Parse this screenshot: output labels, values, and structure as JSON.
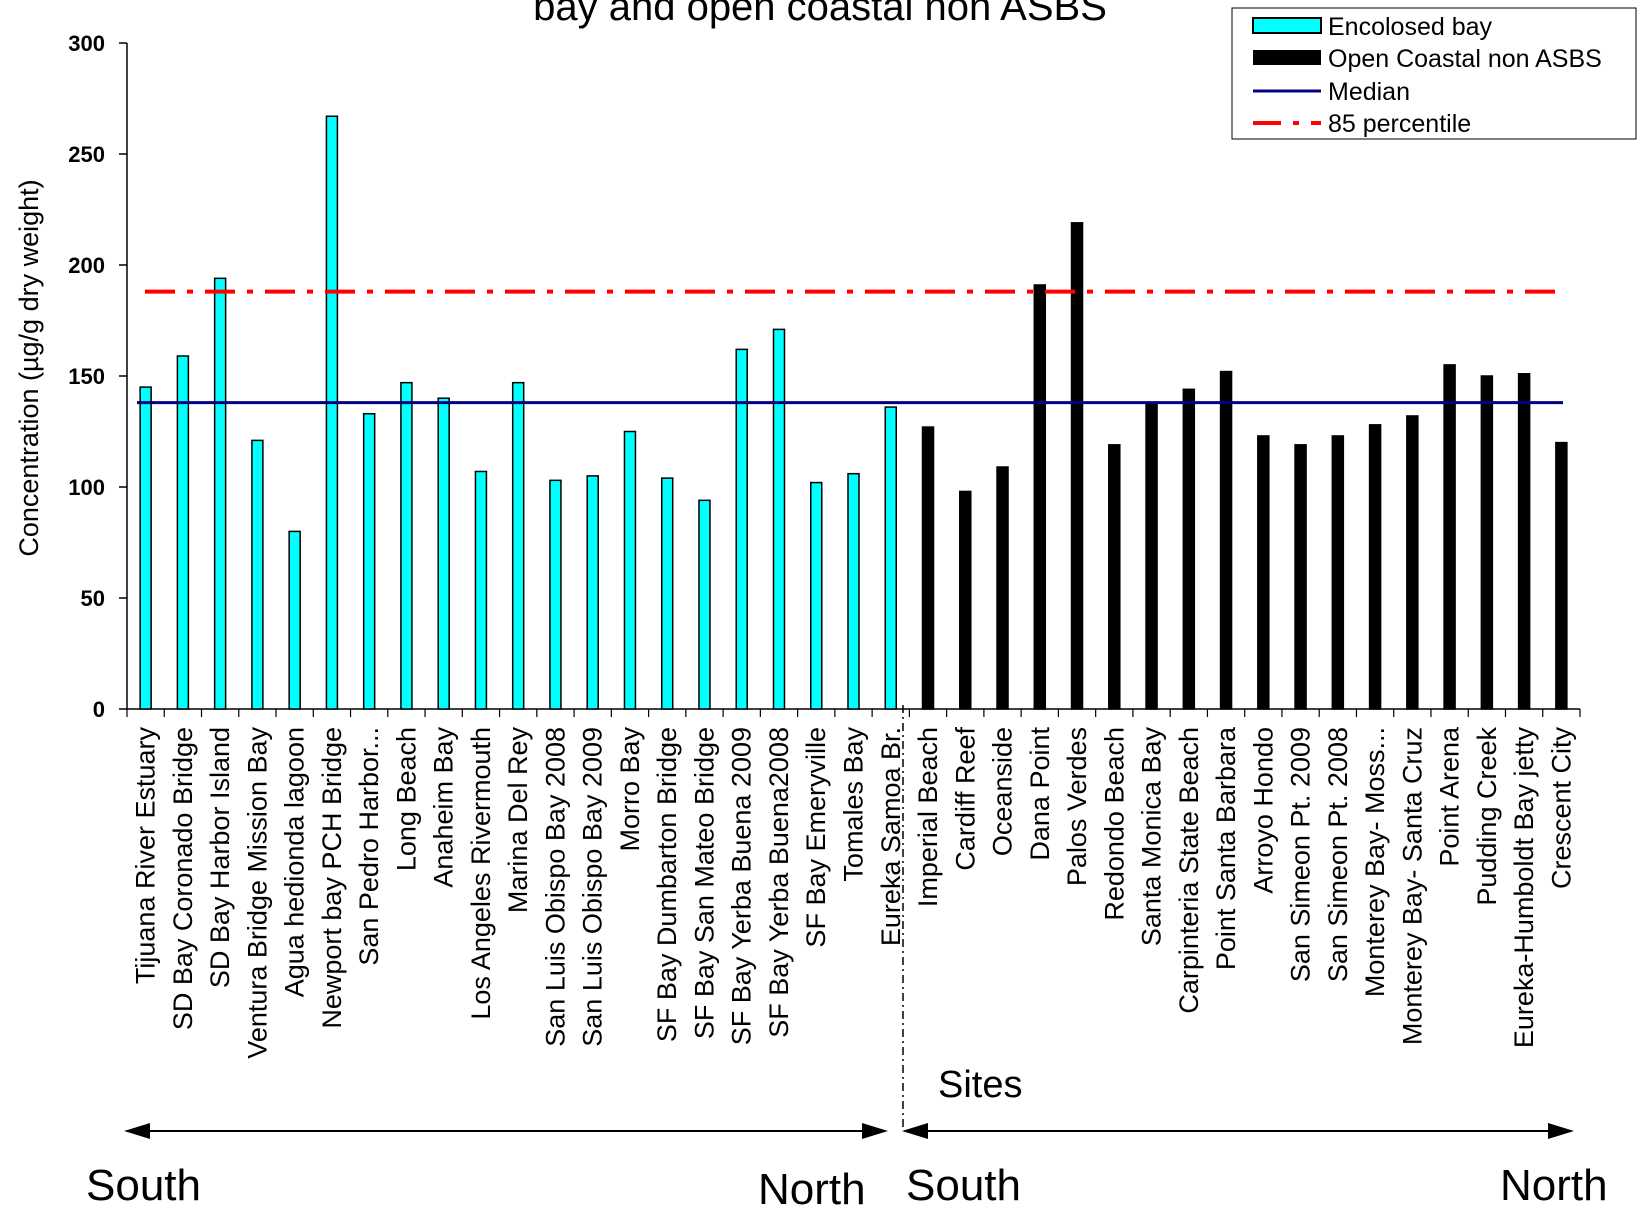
{
  "chart_data": {
    "type": "bar",
    "title": "bay and open coastal non ASBS",
    "xlabel": "Sites",
    "ylabel": "Concentration (µg/g dry weight)",
    "ylim": [
      0,
      300
    ],
    "yticks": [
      0,
      50,
      100,
      150,
      200,
      250,
      300
    ],
    "grid": false,
    "legend_position": "top-right",
    "colors": {
      "enclosed_bay": "#00FFFF",
      "open_coastal": "#000000",
      "median": "#000080",
      "p85": "#FF0000"
    },
    "series": [
      {
        "name": "Encolosed bay",
        "categories": [
          "Tijuana River Estuary",
          "SD Bay Coronado Bridge",
          "SD Bay Harbor Island",
          "Ventura Bridge Mission Bay",
          "Agua hedionda lagoon",
          "Newport bay PCH Bridge",
          "San Pedro Harbor...",
          "Long Beach",
          "Anaheim Bay",
          "Los Angeles Rivermouth",
          "Marina Del Rey",
          "San Luis Obispo Bay 2008",
          "San Luis Obispo Bay 2009",
          "Morro Bay",
          "SF Bay Dumbarton Bridge",
          "SF Bay San Mateo Bridge",
          "SF Bay Yerba Buena 2009",
          "SF Bay Yerba Buena2008",
          "SF Bay Emeryville",
          "Tomales Bay",
          "Eureka Samoa Br."
        ],
        "values": [
          145,
          159,
          194,
          121,
          80,
          267,
          133,
          147,
          140,
          107,
          147,
          103,
          105,
          125,
          104,
          94,
          162,
          171,
          102,
          106,
          136
        ]
      },
      {
        "name": "Open Coastal non ASBS",
        "categories": [
          "Imperial Beach",
          "Cardiff Reef",
          "Oceanside",
          "Dana Point",
          "Palos Verdes",
          "Redondo Beach",
          "Santa Monica Bay",
          "Carpinteria State Beach",
          "Point Santa Barbara",
          "Arroyo Hondo",
          "San Simeon Pt. 2009",
          "San Simeon Pt. 2008",
          "Monterey Bay- Moss...",
          "Monterey Bay- Santa  Cruz",
          "Point Arena",
          "Pudding Creek",
          "Eureka-Humboldt Bay jetty",
          "Crescent City"
        ],
        "values": [
          127,
          98,
          109,
          191,
          219,
          119,
          138,
          144,
          152,
          123,
          119,
          123,
          128,
          132,
          155,
          150,
          151,
          120
        ]
      }
    ],
    "median": {
      "name": "Median",
      "value": 138
    },
    "percentile_85": {
      "name": "85 percentile",
      "value": 188
    },
    "annotations": {
      "south_left": "South",
      "north_left": "North",
      "south_right": "South",
      "north_right": "North"
    }
  }
}
